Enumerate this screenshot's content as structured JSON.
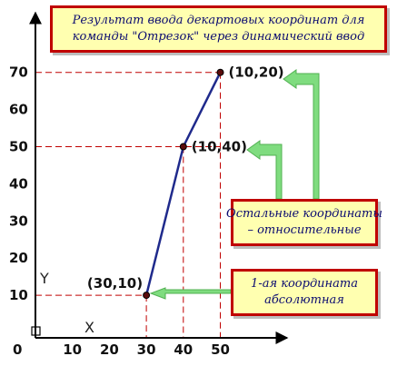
{
  "callouts": {
    "title": {
      "line1": "Результат ввода декартовых координат для",
      "line2": "команды \"Отрезок\" через динамический ввод"
    },
    "relative": {
      "line1": "Остальные координаты",
      "line2": "– относительные"
    },
    "absolute": {
      "line1": "1-ая координата",
      "line2": "абсолютная"
    }
  },
  "axes": {
    "x_ticks": [
      "0",
      "10",
      "20",
      "30",
      "40",
      "50"
    ],
    "y_ticks": [
      "10",
      "20",
      "30",
      "40",
      "50",
      "60",
      "70"
    ],
    "x_letter": "X",
    "y_letter": "Y"
  },
  "points": [
    {
      "x": 30,
      "y": 10,
      "label": "(30,10)"
    },
    {
      "x": 40,
      "y": 50,
      "label": "(10,40)"
    },
    {
      "x": 50,
      "y": 70,
      "label": "(10,20)"
    }
  ],
  "colors": {
    "polyline": "#1f2a8c",
    "guide_lines": "#c00000",
    "callout_border": "#c00000",
    "callout_fill": "#ffffb0",
    "callout_text": "#0b0b70",
    "arrow": "#7fdc7f",
    "axis": "#000000"
  }
}
